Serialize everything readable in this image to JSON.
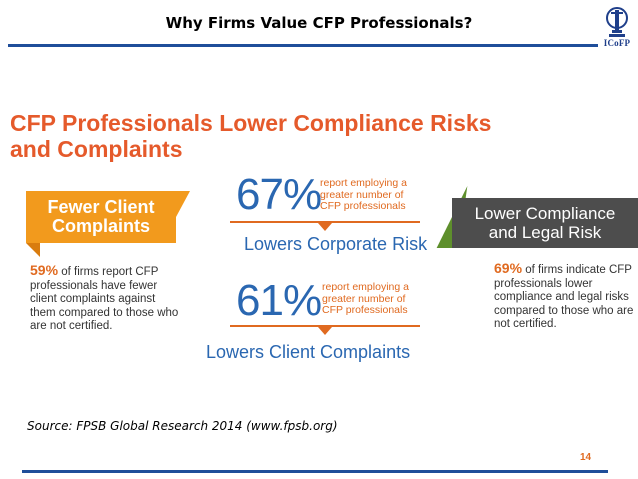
{
  "slide": {
    "title": "Why Firms Value CFP Professionals?",
    "logo_text": "ICoFP",
    "page_number": "14",
    "source": "Source: FPSB Global Research 2014 (www.fpsb.org)"
  },
  "infographic": {
    "headline_line1": "CFP Professionals Lower Compliance Risks",
    "headline_line2": "and Complaints",
    "left": {
      "banner_line1": "Fewer Client",
      "banner_line2": "Complaints",
      "pct": "59%",
      "text": "of firms report CFP professionals have fewer client complaints against them compared to those who are not certified."
    },
    "center": {
      "stat1_pct": "67%",
      "stat1_note_line1": "report employing a",
      "stat1_note_line2": "greater number of",
      "stat1_note_line3": "CFP professionals",
      "stat1_result": "Lowers Corporate Risk",
      "stat2_pct": "61%",
      "stat2_note_line1": "report employing a",
      "stat2_note_line2": "greater number of",
      "stat2_note_line3": "CFP professionals",
      "stat2_result": "Lowers Client Complaints"
    },
    "right": {
      "box_line1": "Lower Compliance",
      "box_line2": "and Legal Risk",
      "pct": "69%",
      "text": "of firms indicate CFP professionals lower compliance and legal risks compared to those who are not certified."
    }
  },
  "colors": {
    "accent_blue": "#1f4e9a",
    "headline_orange": "#e55a2b",
    "stat_blue": "#2a67b1",
    "banner_orange": "#f29a1d",
    "box_gray": "#4d4d4d",
    "triangle_green": "#5e8f2c"
  }
}
